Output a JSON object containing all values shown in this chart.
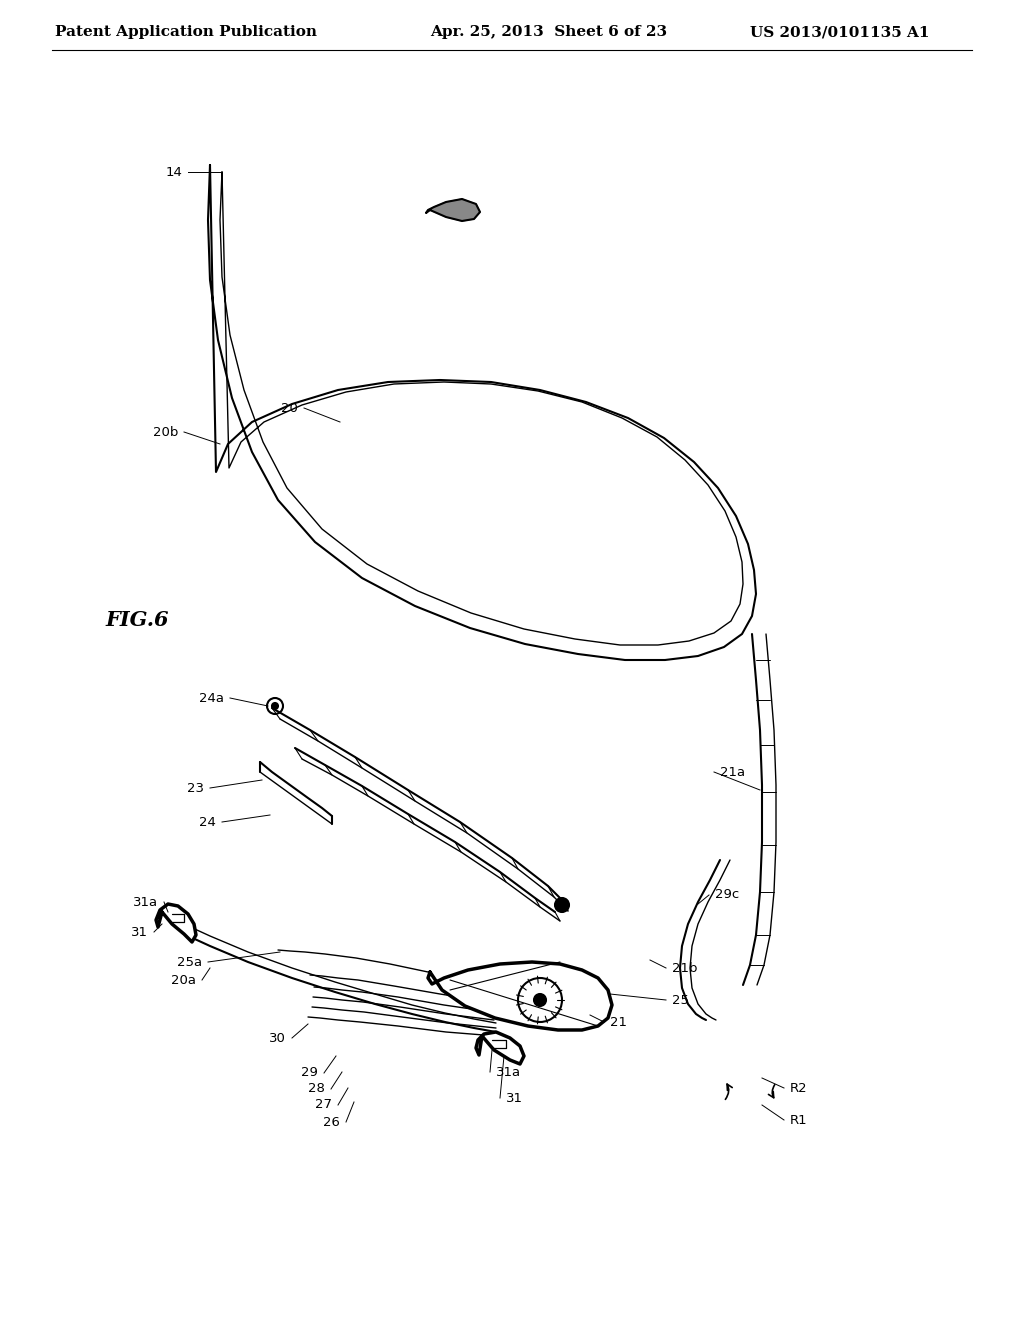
{
  "header_left": "Patent Application Publication",
  "header_center": "Apr. 25, 2013  Sheet 6 of 23",
  "header_right": "US 2013/0101135 A1",
  "figure_label": "FIG.6",
  "background_color": "#ffffff",
  "line_color": "#000000",
  "header_font_size": 11,
  "label_font_size": 9.5
}
